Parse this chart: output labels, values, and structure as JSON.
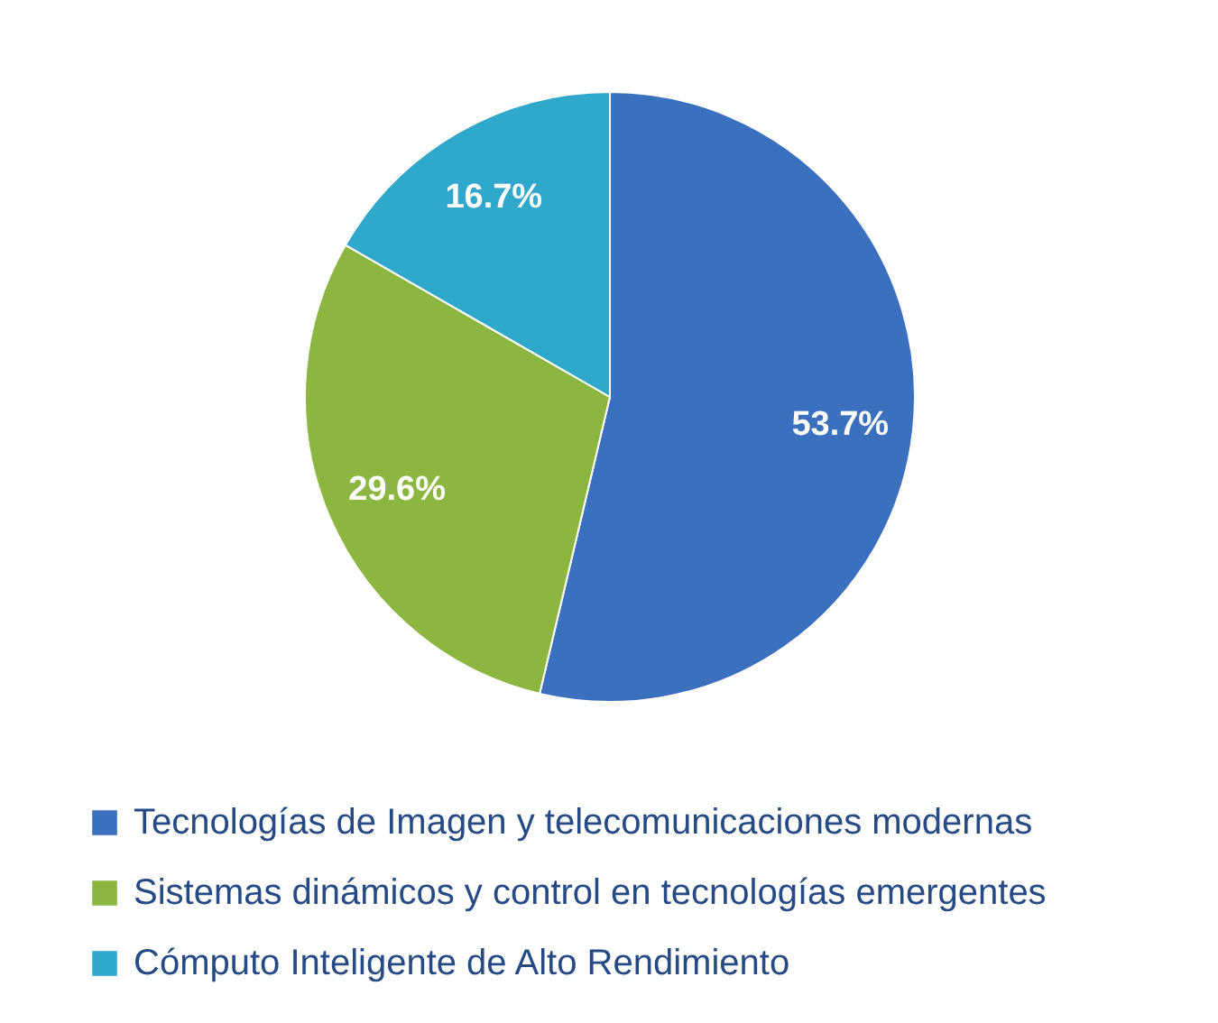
{
  "chart_data": {
    "type": "pie",
    "categories": [
      "Tecnologías de Imagen y telecomunicaciones modernas",
      "Sistemas dinámicos y control en tecnologías emergentes",
      "Cómputo Inteligente de Alto Rendimiento"
    ],
    "values": [
      53.7,
      29.6,
      16.7
    ],
    "colors": [
      "#3a70be",
      "#8cb63f",
      "#30a8cc"
    ],
    "value_labels": [
      "53.7%",
      "29.6%",
      "16.7%"
    ],
    "legend": "bottom"
  }
}
